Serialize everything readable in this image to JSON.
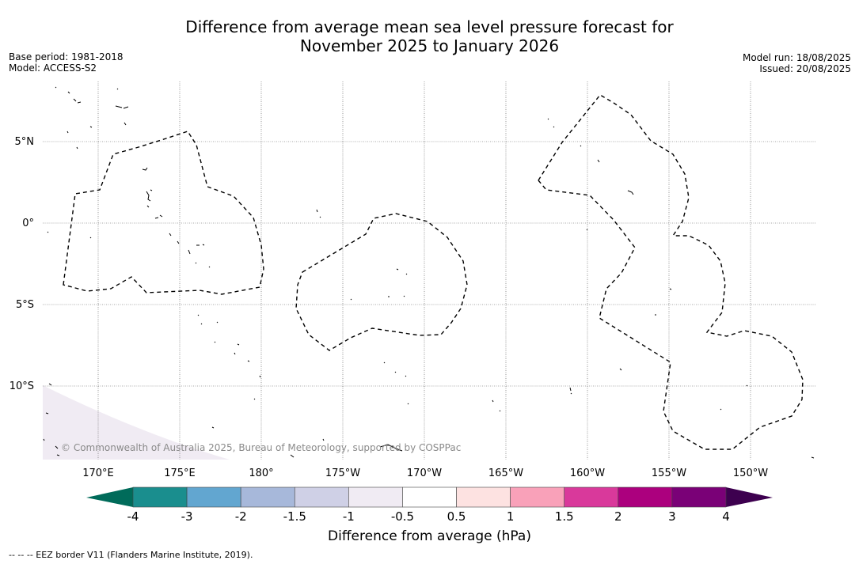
{
  "header": {
    "title_line1": "Difference from average mean sea level pressure forecast for",
    "title_line2": "November 2025 to January 2026",
    "base_period": "Base period: 1981-2018",
    "model": "Model: ACCESS-S2",
    "model_run": "Model run: 18/08/2025",
    "issued": "Issued: 20/08/2025"
  },
  "map": {
    "lat_labels": [
      "5°N",
      "0°",
      "5°S",
      "10°S"
    ],
    "lon_labels": [
      "170°E",
      "175°E",
      "180°",
      "175°W",
      "170°W",
      "165°W",
      "160°W",
      "155°W",
      "150°W"
    ],
    "copyright": "© Commonwealth of Australia 2025, Bureau of Meteorology, supported by COSPPac",
    "shading_color": "#f0ebf3"
  },
  "colorbar": {
    "label": "Difference from average (hPa)",
    "ticks": [
      "-4",
      "-3",
      "-2",
      "-1.5",
      "-1",
      "-0.5",
      "0.5",
      "1",
      "1.5",
      "2",
      "3",
      "4"
    ],
    "under_color": "#006b5a",
    "over_color": "#3d004f",
    "colors": [
      "#1a8e8e",
      "#62a6d0",
      "#a7b8da",
      "#cfd0e6",
      "#f0ebf3",
      "#ffffff",
      "#fde2e1",
      "#f9a1b9",
      "#d9399b",
      "#ac007e",
      "#7a0177"
    ]
  },
  "footer": {
    "eez_note": "--  --  -- EEZ border V11 (Flanders Marine Institute, 2019)."
  }
}
